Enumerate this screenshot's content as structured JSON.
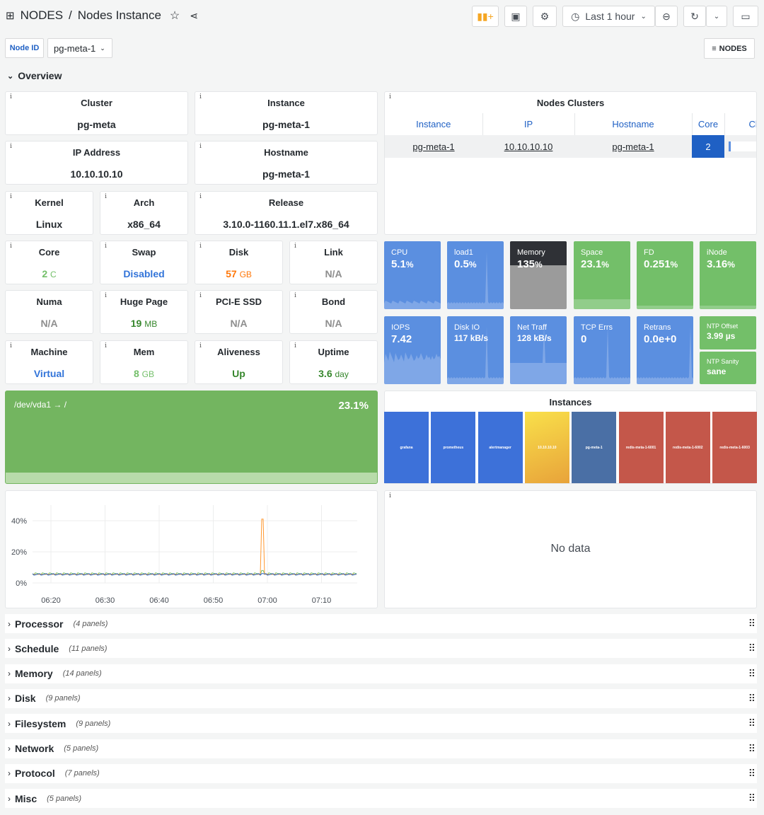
{
  "header": {
    "app": "NODES",
    "separator": "/",
    "title": "Nodes Instance",
    "time_range": "Last 1 hour",
    "nodes_link": "NODES"
  },
  "variables": {
    "label": "Node ID",
    "value": "pg-meta-1"
  },
  "overview": {
    "title": "Overview",
    "stats": {
      "cluster": {
        "label": "Cluster",
        "value": "pg-meta"
      },
      "instance": {
        "label": "Instance",
        "value": "pg-meta-1"
      },
      "ip": {
        "label": "IP Address",
        "value": "10.10.10.10"
      },
      "hostname": {
        "label": "Hostname",
        "value": "pg-meta-1"
      },
      "kernel": {
        "label": "Kernel",
        "value": "Linux"
      },
      "arch": {
        "label": "Arch",
        "value": "x86_64"
      },
      "release": {
        "label": "Release",
        "value": "3.10.0-1160.11.1.el7.x86_64"
      },
      "core": {
        "label": "Core",
        "value": "2",
        "unit": "C",
        "color": "#73bf69"
      },
      "swap": {
        "label": "Swap",
        "value": "Disabled",
        "color": "#3274d9"
      },
      "disk": {
        "label": "Disk",
        "value": "57",
        "unit": "GB",
        "color": "#ff780a"
      },
      "link": {
        "label": "Link",
        "value": "N/A"
      },
      "numa": {
        "label": "Numa",
        "value": "N/A"
      },
      "hugepage": {
        "label": "Huge Page",
        "value": "19",
        "unit": "MB",
        "color": "#37872d"
      },
      "pcie": {
        "label": "PCI-E SSD",
        "value": "N/A"
      },
      "bond": {
        "label": "Bond",
        "value": "N/A"
      },
      "machine": {
        "label": "Machine",
        "value": "Virtual",
        "color": "#3274d9"
      },
      "mem": {
        "label": "Mem",
        "value": "8",
        "unit": "GB",
        "color": "#73bf69"
      },
      "aliveness": {
        "label": "Aliveness",
        "value": "Up",
        "color": "#37872d"
      },
      "uptime": {
        "label": "Uptime",
        "value": "3.6",
        "unit": "day",
        "color": "#37872d"
      }
    },
    "clusters_table": {
      "title": "Nodes Clusters",
      "columns": [
        "Instance",
        "IP",
        "Hostname",
        "Core",
        "Cl"
      ],
      "rows": [
        {
          "instance": "pg-meta-1",
          "ip": "10.10.10.10",
          "hostname": "pg-meta-1",
          "core": "2"
        }
      ]
    },
    "tiles": [
      {
        "label": "CPU",
        "value": "5.1",
        "unit": "%",
        "color": "#5b8fe0"
      },
      {
        "label": "load1",
        "value": "0.5",
        "unit": "%",
        "color": "#5b8fe0"
      },
      {
        "label": "Memory",
        "value": "135",
        "unit": "%",
        "color": "#7f7f7f"
      },
      {
        "label": "Space",
        "value": "23.1",
        "unit": "%",
        "color": "#73bf69"
      },
      {
        "label": "FD",
        "value": "0.251",
        "unit": "%",
        "color": "#73bf69"
      },
      {
        "label": "iNode",
        "value": "3.16",
        "unit": "%",
        "color": "#73bf69"
      },
      {
        "label": "IOPS",
        "value": "7.42",
        "unit": "",
        "color": "#5b8fe0"
      },
      {
        "label": "Disk IO",
        "value": "117 kB/s",
        "unit": "",
        "color": "#5b8fe0"
      },
      {
        "label": "Net Traff",
        "value": "128 kB/s",
        "unit": "",
        "color": "#5b8fe0"
      },
      {
        "label": "TCP Errs",
        "value": "0",
        "unit": "",
        "color": "#5b8fe0"
      },
      {
        "label": "Retrans",
        "value": "0.0e+0",
        "unit": "",
        "color": "#5b8fe0"
      },
      {
        "label": "NTP Offset",
        "value": "3.99 µs",
        "unit": "",
        "color": "#73bf69"
      },
      {
        "label": "NTP Sanity",
        "value": "sane",
        "unit": "",
        "color": "#73bf69"
      }
    ],
    "filesystem": {
      "mount": "/dev/vda1 → /",
      "value": "23.1",
      "unit": "%",
      "fraction": 0.231
    },
    "instances": {
      "title": "Instances",
      "items": [
        {
          "name": "grafana",
          "color": "#3d71d9"
        },
        {
          "name": "prometheus",
          "color": "#3d71d9"
        },
        {
          "name": "alertmanager",
          "color": "#3d71d9"
        },
        {
          "name": "10.10.10.10",
          "color": "#f2cc0c"
        },
        {
          "name": "pg-meta-1",
          "color": "#4a6fa5"
        },
        {
          "name": "redis-meta-1-6001",
          "color": "#c4574a"
        },
        {
          "name": "redis-meta-1-6002",
          "color": "#c4574a"
        },
        {
          "name": "redis-meta-1-6003",
          "color": "#c4574a"
        }
      ]
    },
    "no_data": "No data"
  },
  "chart_data": {
    "type": "line",
    "x_ticks": [
      "06:20",
      "06:30",
      "06:40",
      "06:50",
      "07:00",
      "07:10"
    ],
    "y_ticks": [
      "0%",
      "20%",
      "40%"
    ],
    "ylim": [
      0,
      50
    ],
    "series": [
      {
        "color": "#73bf69",
        "baseline": 6,
        "peak": 8
      },
      {
        "color": "#ff9830",
        "baseline": 6,
        "peak": 41
      },
      {
        "color": "#1f60c4",
        "baseline": 5.5,
        "peak": 6
      }
    ]
  },
  "rows": [
    {
      "name": "Processor",
      "count": "(4 panels)"
    },
    {
      "name": "Schedule",
      "count": "(11 panels)"
    },
    {
      "name": "Memory",
      "count": "(14 panels)"
    },
    {
      "name": "Disk",
      "count": "(9 panels)"
    },
    {
      "name": "Filesystem",
      "count": "(9 panels)"
    },
    {
      "name": "Network",
      "count": "(5 panels)"
    },
    {
      "name": "Protocol",
      "count": "(7 panels)"
    },
    {
      "name": "Misc",
      "count": "(5 panels)"
    }
  ]
}
